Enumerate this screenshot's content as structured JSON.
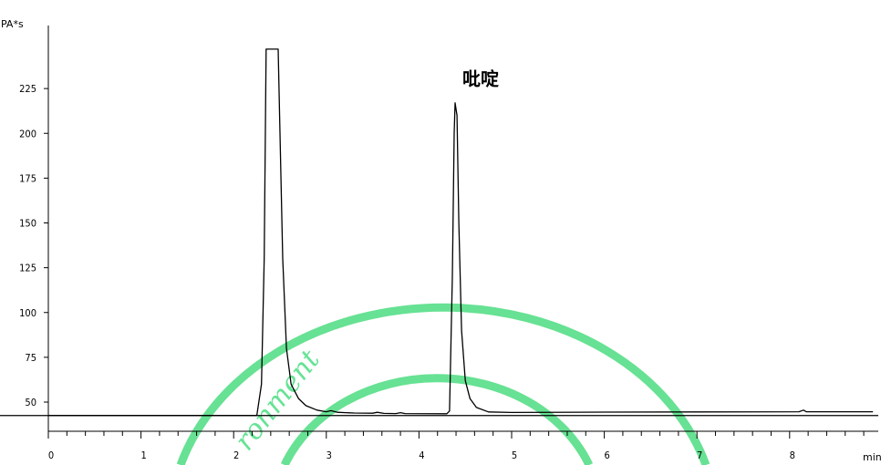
{
  "chart_data": {
    "type": "line",
    "title": "",
    "xlabel": "min",
    "ylabel": "PA*s",
    "xlim": [
      0,
      8.9
    ],
    "ylim": [
      34,
      247
    ],
    "x_ticks": [
      0,
      1,
      2,
      3,
      4,
      5,
      6,
      7,
      8
    ],
    "y_ticks": [
      50,
      75,
      100,
      125,
      150,
      175,
      200,
      225
    ],
    "baseline": 42.5,
    "grid": false,
    "legend": "none",
    "annotations": [
      {
        "text": "吡啶",
        "x": 4.4,
        "y": 230
      }
    ],
    "series": [
      {
        "color": "#000000",
        "points": [
          [
            0.0,
            42.5
          ],
          [
            2.25,
            42.5
          ],
          [
            2.3,
            60
          ],
          [
            2.33,
            130
          ],
          [
            2.35,
            247
          ],
          [
            2.48,
            247
          ],
          [
            2.5,
            200
          ],
          [
            2.53,
            130
          ],
          [
            2.57,
            80
          ],
          [
            2.62,
            60
          ],
          [
            2.7,
            52
          ],
          [
            2.78,
            48
          ],
          [
            2.9,
            45.5
          ],
          [
            3.0,
            44.6
          ],
          [
            3.05,
            45.2
          ],
          [
            3.12,
            44.3
          ],
          [
            3.3,
            43.9
          ],
          [
            3.5,
            43.8
          ],
          [
            3.55,
            44.3
          ],
          [
            3.62,
            43.7
          ],
          [
            3.75,
            43.6
          ],
          [
            3.8,
            44.1
          ],
          [
            3.85,
            43.6
          ],
          [
            4.3,
            43.5
          ],
          [
            4.33,
            45
          ],
          [
            4.36,
            120
          ],
          [
            4.38,
            200
          ],
          [
            4.39,
            217
          ],
          [
            4.41,
            210
          ],
          [
            4.43,
            150
          ],
          [
            4.46,
            90
          ],
          [
            4.5,
            62
          ],
          [
            4.55,
            52
          ],
          [
            4.62,
            47
          ],
          [
            4.75,
            44.5
          ],
          [
            5.0,
            44.2
          ],
          [
            6.0,
            44.4
          ],
          [
            7.0,
            44.5
          ],
          [
            8.1,
            44.6
          ],
          [
            8.15,
            45.5
          ],
          [
            8.18,
            44.6
          ],
          [
            8.9,
            44.6
          ]
        ]
      }
    ]
  },
  "watermark": {
    "text": "ronment",
    "color": "#4cdc80"
  }
}
